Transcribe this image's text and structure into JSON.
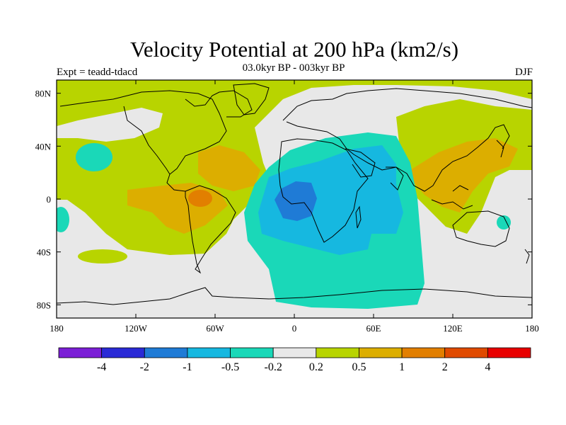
{
  "title": "Velocity Potential at 200 hPa (km2/s)",
  "subtitle": "03.0kyr BP - 003kyr BP",
  "left_label": "Expt = teadd-tdacd",
  "right_label": "DJF",
  "map": {
    "projection": "cylindrical equidistant",
    "lon_range": [
      -180,
      180
    ],
    "lat_range": [
      -90,
      90
    ],
    "background_color": "#e8e8e8",
    "x_ticks": [
      {
        "lon": -180,
        "label": "180"
      },
      {
        "lon": -120,
        "label": "120W"
      },
      {
        "lon": -60,
        "label": "60W"
      },
      {
        "lon": 0,
        "label": "0"
      },
      {
        "lon": 60,
        "label": "60E"
      },
      {
        "lon": 120,
        "label": "120E"
      },
      {
        "lon": 180,
        "label": "180"
      }
    ],
    "y_ticks": [
      {
        "lat": 80,
        "label": "80N"
      },
      {
        "lat": 40,
        "label": "40N"
      },
      {
        "lat": 0,
        "label": "0"
      },
      {
        "lat": -40,
        "label": "40S"
      },
      {
        "lat": -80,
        "label": "80S"
      }
    ]
  },
  "colorbar": {
    "colors": [
      "#7b1fd6",
      "#2a2ad6",
      "#1f7bd6",
      "#16b8e0",
      "#1ad8b8",
      "#e8e8e8",
      "#b8d400",
      "#dcae00",
      "#e27f00",
      "#e04a00",
      "#e80000"
    ],
    "labels": [
      "-4",
      "-2",
      "-1",
      "-0.5",
      "-0.2",
      "0.2",
      "0.5",
      "1",
      "2",
      "4"
    ]
  },
  "colors": {
    "green": "#b8d400",
    "orange_light": "#dcae00",
    "orange": "#e27f00",
    "teal": "#1ad8b8",
    "cyan": "#16b8e0",
    "blue": "#1f7bd6"
  }
}
